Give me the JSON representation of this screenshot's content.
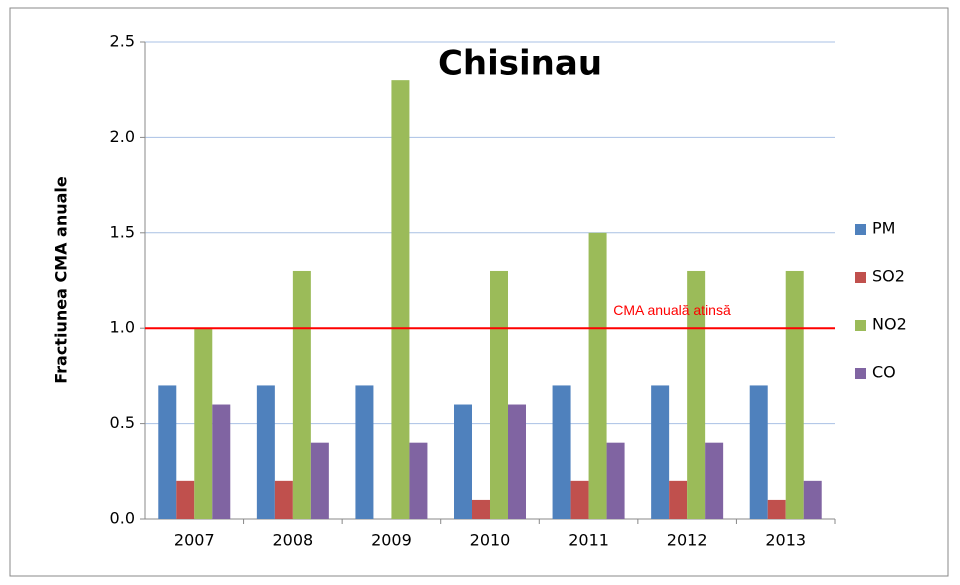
{
  "chart_data": {
    "type": "bar",
    "title": "Chisinau",
    "y_label": "Fractiunea CMA anuale",
    "categories": [
      "2007",
      "2008",
      "2009",
      "2010",
      "2011",
      "2012",
      "2013"
    ],
    "series": [
      {
        "name": "PM",
        "color": "#4f81bd",
        "values": [
          0.7,
          0.7,
          0.7,
          0.6,
          0.7,
          0.7,
          0.7
        ]
      },
      {
        "name": "SO2",
        "color": "#c0504d",
        "values": [
          0.2,
          0.2,
          0,
          0.1,
          0.2,
          0.2,
          0.1
        ]
      },
      {
        "name": "NO2",
        "color": "#9bbb59",
        "values": [
          1.0,
          1.3,
          2.3,
          1.3,
          1.5,
          1.3,
          1.3
        ]
      },
      {
        "name": "CO",
        "color": "#8064a2",
        "values": [
          0.6,
          0.4,
          0.4,
          0.6,
          0.4,
          0.4,
          0.2
        ]
      }
    ],
    "ylim": [
      0,
      2.5
    ],
    "yticks": [
      {
        "value": 0,
        "label": "0.0"
      },
      0.5,
      {
        "value": 1,
        "label": "1.0"
      },
      1.5,
      {
        "value": 2,
        "label": "2.0"
      },
      2.5
    ],
    "grid": true,
    "legend": "right",
    "reference_line": {
      "value": 1,
      "label": "CMA anuală atinsă",
      "color": "#ff0000"
    }
  }
}
